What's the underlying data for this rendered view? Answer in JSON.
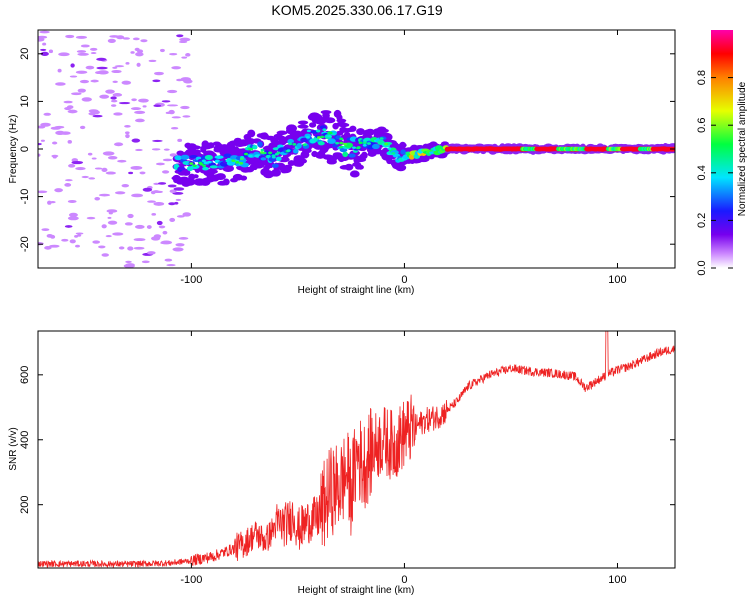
{
  "chart_data": [
    {
      "type": "heatmap",
      "title": "KOM5.2025.330.06.17.G19",
      "xlabel": "Height of straight line (km)",
      "ylabel": "Frequency (Hz)",
      "xlim": [
        -172,
        127
      ],
      "ylim": [
        -25,
        25
      ],
      "x_ticks": [
        -100,
        0,
        100
      ],
      "y_ticks": [
        -20,
        -10,
        0,
        10,
        20
      ],
      "colorbar": {
        "label": "Normalized spectral amplitude",
        "range": [
          0,
          1
        ],
        "ticks": [
          0.0,
          0.2,
          0.4,
          0.6,
          0.8
        ],
        "colors": [
          "#ffffff",
          "#cc88ff",
          "#7700ee",
          "#1a1aff",
          "#00e5ff",
          "#00ff40",
          "#e6ff00",
          "#ff8000",
          "#ff0000",
          "#ff00aa"
        ]
      },
      "features": {
        "noise_region_x": [
          -172,
          -101
        ],
        "signal_trace_x": [
          -107,
          127
        ],
        "strong_line_x": [
          20,
          127
        ],
        "strong_line_freq": 0
      }
    },
    {
      "type": "line",
      "xlabel": "Height of straight line (km)",
      "ylabel": "SNR (v/v)",
      "xlim": [
        -172,
        127
      ],
      "ylim": [
        5,
        735
      ],
      "x_ticks": [
        -100,
        0,
        100
      ],
      "y_ticks": [
        200,
        400,
        600
      ],
      "color": "#ee2222",
      "series": [
        {
          "name": "SNR",
          "x": [
            -172,
            -150,
            -130,
            -110,
            -100,
            -90,
            -80,
            -75,
            -70,
            -65,
            -60,
            -55,
            -52,
            -50,
            -45,
            -40,
            -35,
            -30,
            -27,
            -25,
            -22,
            -20,
            -18,
            -15,
            -10,
            -5,
            0,
            5,
            10,
            15,
            20,
            25,
            30,
            40,
            50,
            55,
            60,
            70,
            80,
            85,
            90,
            95,
            100,
            105,
            110,
            115,
            120,
            127
          ],
          "values": [
            18,
            18,
            17,
            20,
            28,
            40,
            65,
            80,
            110,
            90,
            140,
            140,
            170,
            120,
            150,
            160,
            240,
            260,
            300,
            240,
            360,
            320,
            330,
            370,
            400,
            380,
            420,
            440,
            460,
            470,
            490,
            520,
            565,
            600,
            620,
            615,
            610,
            605,
            595,
            560,
            580,
            600,
            615,
            625,
            640,
            655,
            670,
            680
          ]
        }
      ]
    }
  ]
}
